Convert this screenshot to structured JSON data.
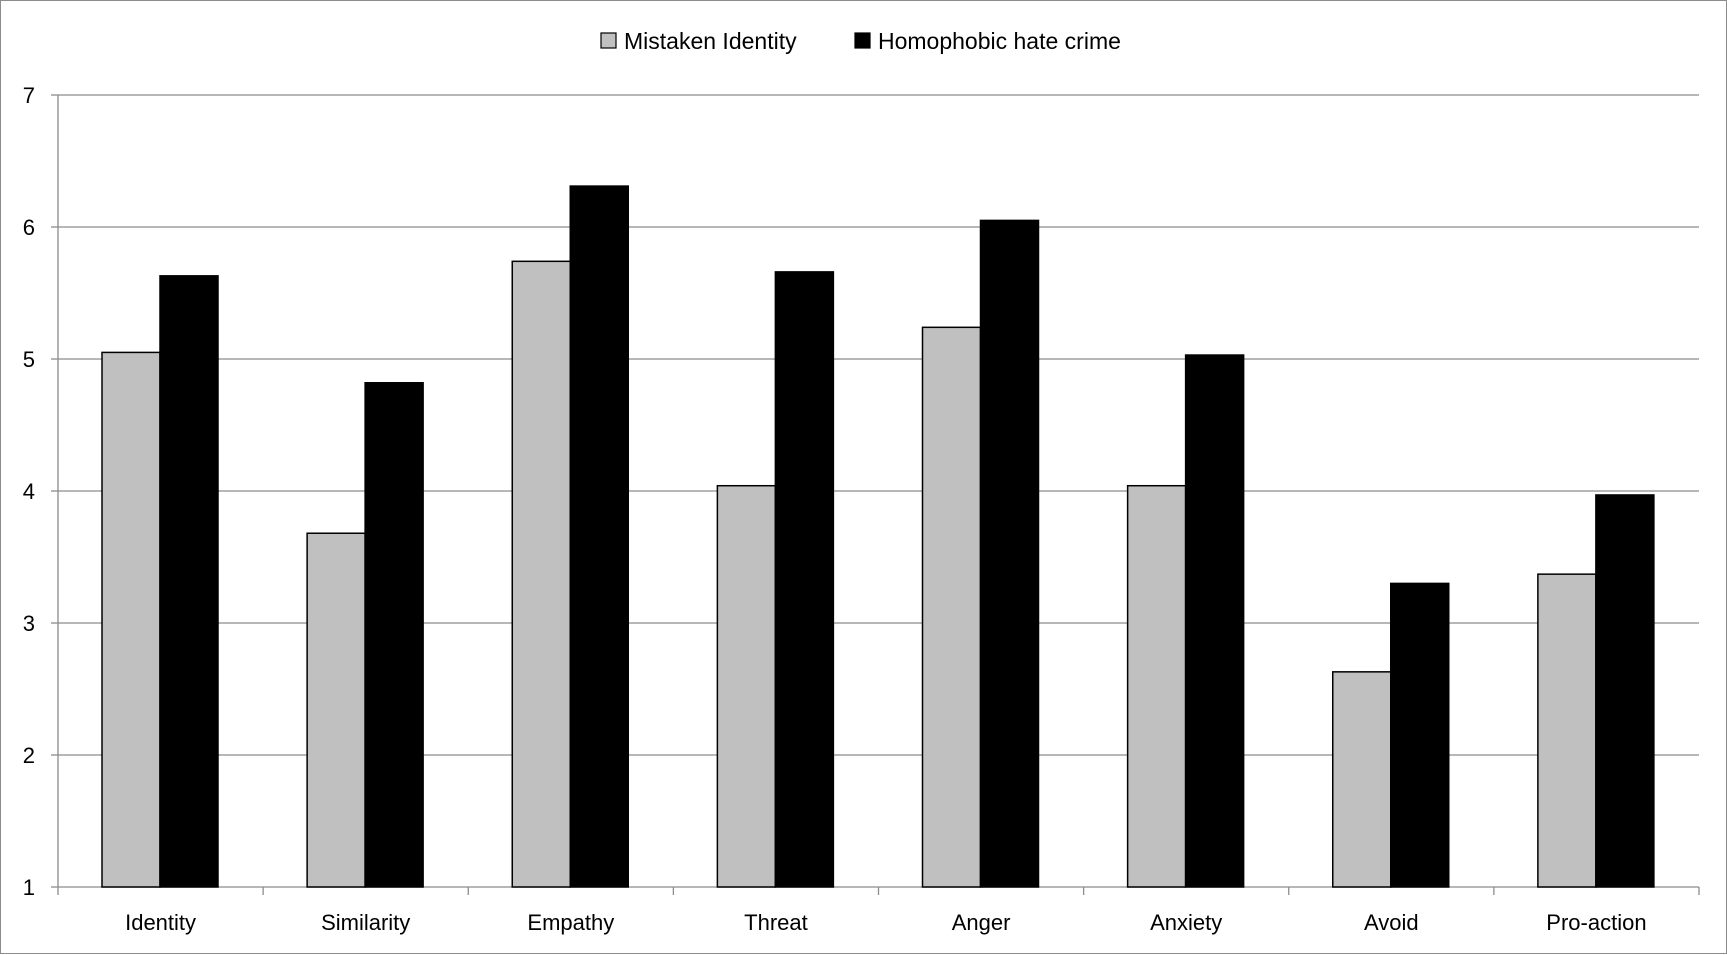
{
  "chart_data": {
    "type": "bar",
    "title": "",
    "xlabel": "",
    "ylabel": "",
    "ylim": [
      1,
      7
    ],
    "yticks": [
      1,
      2,
      3,
      4,
      5,
      6,
      7
    ],
    "grid": true,
    "legend_position": "top-center",
    "categories": [
      "Identity",
      "Similarity",
      "Empathy",
      "Threat",
      "Anger",
      "Anxiety",
      "Avoid",
      "Pro-action"
    ],
    "series": [
      {
        "name": "Mistaken Identity",
        "color": "#c0c0c0",
        "values": [
          5.05,
          3.68,
          5.74,
          4.04,
          5.24,
          4.04,
          2.63,
          3.37
        ]
      },
      {
        "name": "Homophobic hate crime",
        "color": "#000000",
        "values": [
          5.63,
          4.82,
          6.31,
          5.66,
          6.05,
          5.03,
          3.3,
          3.97
        ]
      }
    ]
  }
}
